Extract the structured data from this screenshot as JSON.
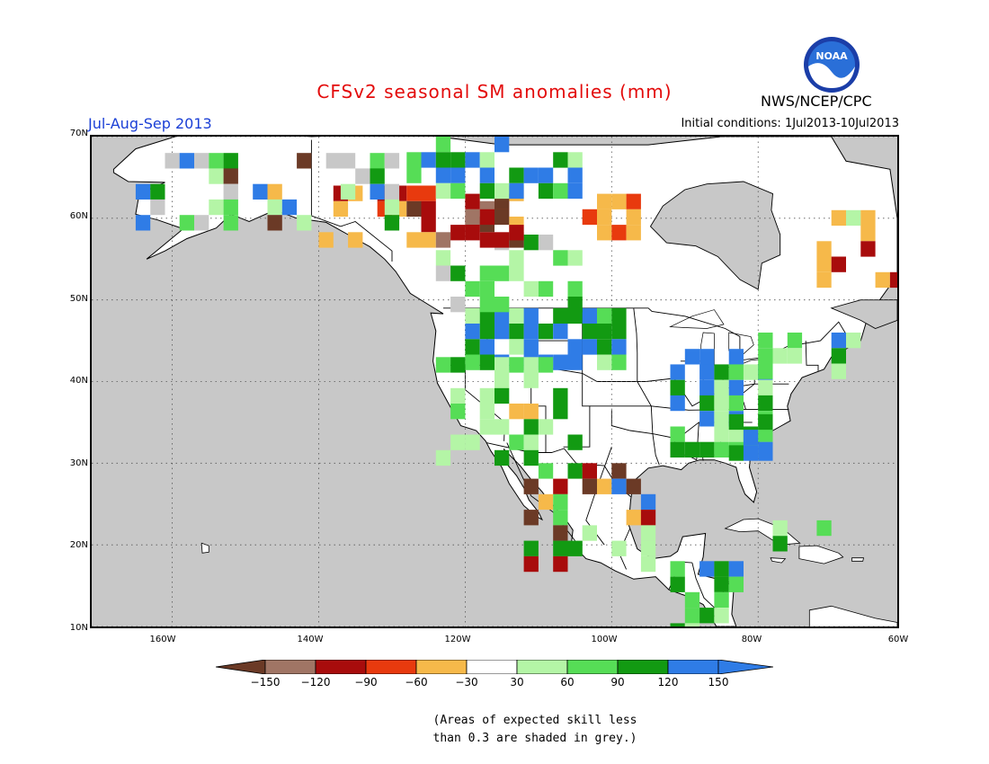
{
  "header": {
    "title": "CFSv2 seasonal SM anomalies (mm)",
    "season": "Jul-Aug-Sep 2013",
    "initial_conditions": "Initial conditions: 1Jul2013-10Jul2013",
    "agency": "NWS/NCEP/CPC",
    "logo_text": "NOAA"
  },
  "axes": {
    "lat_ticks": [
      "70N",
      "60N",
      "50N",
      "40N",
      "30N",
      "20N",
      "10N"
    ],
    "lon_ticks": [
      "160W",
      "140W",
      "120W",
      "100W",
      "80W",
      "60W"
    ]
  },
  "legend": {
    "labels": [
      "-150",
      "-120",
      "-90",
      "-60",
      "-30",
      "30",
      "60",
      "90",
      "120",
      "150"
    ],
    "colors": [
      "#6b3a26",
      "#a07565",
      "#a80c0c",
      "#e83a0e",
      "#f6b94a",
      "#ffffff",
      "#b4f5a6",
      "#56dd56",
      "#129a12",
      "#2f7ce6",
      "#2f7ce6"
    ]
  },
  "colors": {
    "grey": "#c8c8c8",
    "title": "#e30b0b",
    "season": "#1a3fd6"
  },
  "footnote": {
    "line1": "(Areas of expected skill less",
    "line2": "than 0.3 are shaded in grey.)"
  }
}
